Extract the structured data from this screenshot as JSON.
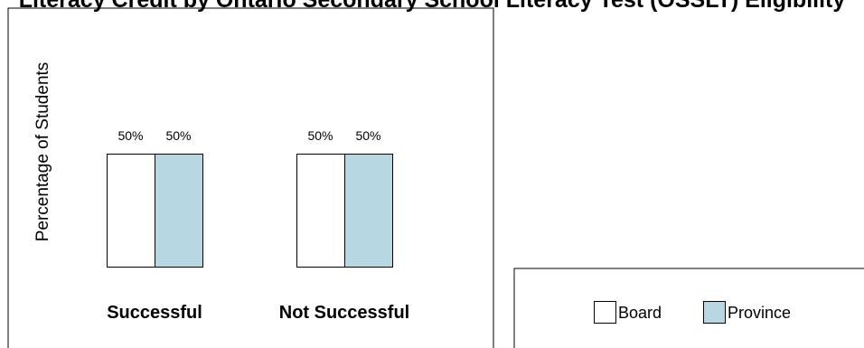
{
  "chart_data": {
    "type": "bar",
    "title": "Literacy Credit by Ontario Secondary School Literacy Test (OSSLT) Eligibility",
    "ylabel": "Percentage of Students",
    "xlabel": "",
    "categories": [
      "Successful",
      "Not Successful"
    ],
    "series": [
      {
        "name": "Board",
        "values": [
          50,
          50
        ],
        "labels": [
          "50%",
          "50%"
        ],
        "color": "#ffffff"
      },
      {
        "name": "Province",
        "values": [
          50,
          50
        ],
        "labels": [
          "50%",
          "50%"
        ],
        "color": "#b7d7e2"
      }
    ],
    "ylim": [
      0,
      100
    ],
    "grid": false,
    "legend": {
      "position": "bottom-right"
    }
  }
}
